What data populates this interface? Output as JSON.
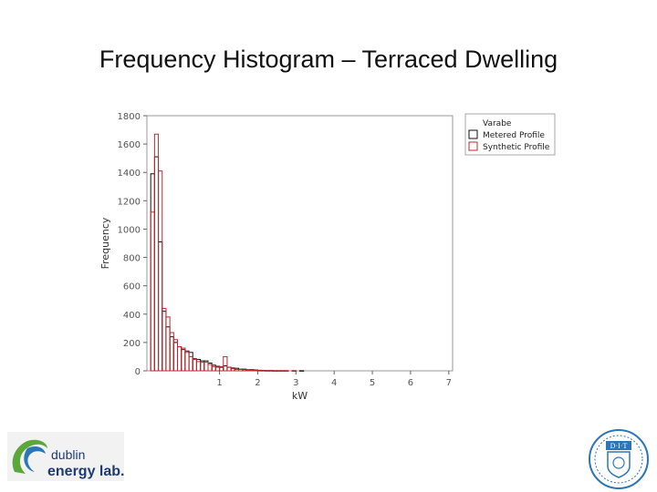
{
  "slide": {
    "title": "Frequency Histogram – Terraced Dwelling"
  },
  "logos": {
    "left_line1": "dublin",
    "left_line2": "energy lab.",
    "right_text": "D·I·T"
  },
  "colors": {
    "metered": "#111111",
    "synthetic": "#c0282d",
    "frame": "#999999",
    "logo_green": "#5aa83a",
    "logo_navy": "#1f3b73",
    "logo_blue": "#2a76b8"
  },
  "chart_data": {
    "type": "bar",
    "xlabel": "kW",
    "ylabel": "Frequency",
    "xlim": [
      -0.9,
      7.1
    ],
    "ylim": [
      0,
      1800
    ],
    "x_ticks": [
      1,
      2,
      3,
      4,
      5,
      6,
      7
    ],
    "y_ticks": [
      0,
      200,
      400,
      600,
      800,
      1000,
      1200,
      1400,
      1600,
      1800
    ],
    "legend": {
      "title": "Varabe",
      "placement": "right"
    },
    "bin_edges": [
      -0.9,
      -0.8,
      -0.7,
      -0.6,
      -0.5,
      -0.4,
      -0.3,
      -0.2,
      -0.1,
      0.0,
      0.1,
      0.2,
      0.3,
      0.4,
      0.5,
      0.6,
      0.7,
      0.8,
      0.9,
      1.0,
      1.1,
      1.2,
      1.3,
      1.4,
      1.5,
      1.6,
      1.7,
      1.8,
      1.9,
      2.0,
      2.1,
      2.2,
      2.3,
      2.4,
      2.5,
      2.6,
      2.7,
      2.8,
      2.9,
      3.0,
      3.1,
      3.2,
      3.3,
      3.4,
      3.5,
      3.6,
      3.7,
      3.8,
      3.9,
      4.0,
      4.1,
      4.2,
      4.3,
      4.4,
      4.5,
      4.6,
      4.7,
      4.8,
      4.9,
      5.0,
      5.1,
      5.2,
      5.3,
      5.4,
      5.5,
      5.6,
      5.7,
      5.8,
      5.9,
      6.0,
      6.1,
      6.2,
      6.3,
      6.4,
      6.5,
      6.6,
      6.7,
      6.8,
      6.9,
      7.0
    ],
    "series": [
      {
        "name": "Metered Profile",
        "values": [
          0,
          1390,
          1510,
          910,
          420,
          310,
          240,
          200,
          170,
          150,
          140,
          130,
          85,
          80,
          70,
          70,
          55,
          40,
          32,
          25,
          35,
          25,
          20,
          18,
          12,
          12,
          8,
          8,
          6,
          4,
          3,
          2,
          2,
          1,
          1,
          1,
          1,
          0,
          1,
          0,
          1,
          0,
          0,
          0,
          0,
          0,
          0,
          0,
          0,
          0,
          0,
          0,
          0,
          0,
          0,
          0,
          0,
          0,
          0,
          0,
          0,
          0,
          0,
          0,
          0,
          0,
          0,
          0,
          0,
          0,
          0,
          0,
          0,
          0,
          0,
          0,
          0,
          0,
          0
        ]
      },
      {
        "name": "Synthetic Profile",
        "values": [
          0,
          1120,
          1670,
          1410,
          440,
          380,
          270,
          220,
          170,
          160,
          130,
          100,
          80,
          65,
          60,
          60,
          45,
          30,
          25,
          30,
          100,
          25,
          15,
          10,
          10,
          8,
          6,
          4,
          3,
          2,
          2,
          2,
          2,
          1,
          1,
          1,
          1,
          0,
          1,
          0,
          0,
          0,
          0,
          0,
          0,
          0,
          0,
          0,
          0,
          0,
          0,
          0,
          0,
          0,
          0,
          0,
          0,
          0,
          0,
          0,
          0,
          0,
          0,
          0,
          0,
          0,
          0,
          0,
          0,
          0,
          0,
          0,
          0,
          0,
          0,
          0,
          0,
          0,
          0,
          0
        ]
      }
    ]
  }
}
